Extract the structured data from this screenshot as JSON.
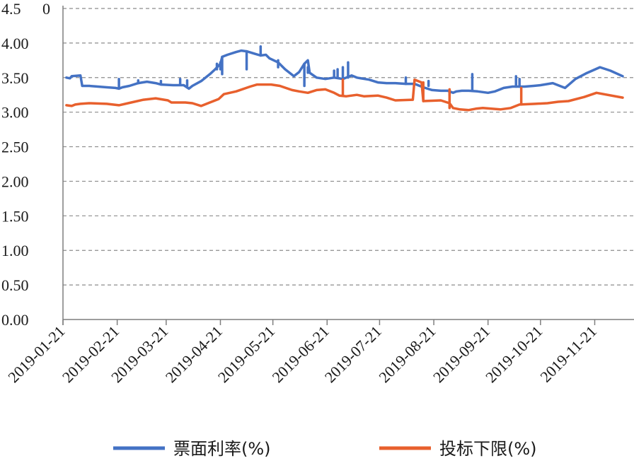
{
  "chart_data": {
    "type": "line",
    "xlabel": "",
    "ylabel": "",
    "y_tick_labels": [
      "0.00",
      "0.50",
      "1.00",
      "1.50",
      "2.00",
      "2.50",
      "3.00",
      "3.50",
      "4.00",
      "4.5"
    ],
    "y_tick_values": [
      0,
      0.5,
      1.0,
      1.5,
      2.0,
      2.5,
      3.0,
      3.5,
      4.0,
      4.5
    ],
    "top_left_label": "0",
    "ylim": [
      0,
      4.5
    ],
    "x_tick_labels": [
      "2019-01-21",
      "2019-02-21",
      "2019-03-21",
      "2019-04-21",
      "2019-05-21",
      "2019-06-21",
      "2019-07-21",
      "2019-08-21",
      "2019-09-21",
      "2019-10-21",
      "2019-11-21"
    ],
    "x_tick_dates": [
      "2019-01-21",
      "2019-02-21",
      "2019-03-21",
      "2019-04-21",
      "2019-05-21",
      "2019-06-21",
      "2019-07-21",
      "2019-08-21",
      "2019-09-21",
      "2019-10-21",
      "2019-11-21"
    ],
    "xlim": [
      "2019-01-21",
      "2019-12-07"
    ],
    "grid": "horizontal dashed",
    "legend_position": "bottom",
    "series": [
      {
        "name": "票面利率(%)",
        "color": "#4472C4",
        "points": [
          [
            "2019-01-23",
            3.5
          ],
          [
            "2019-01-25",
            3.49
          ],
          [
            "2019-01-26",
            3.52
          ],
          [
            "2019-01-31",
            3.53
          ],
          [
            "2019-02-01",
            3.38
          ],
          [
            "2019-02-05",
            3.38
          ],
          [
            "2019-02-10",
            3.37
          ],
          [
            "2019-02-15",
            3.36
          ],
          [
            "2019-02-20",
            3.35
          ],
          [
            "2019-02-22",
            3.34
          ],
          [
            "2019-02-24",
            3.36
          ],
          [
            "2019-02-28",
            3.38
          ],
          [
            "2019-03-05",
            3.42
          ],
          [
            "2019-03-10",
            3.44
          ],
          [
            "2019-03-15",
            3.42
          ],
          [
            "2019-03-18",
            3.4
          ],
          [
            "2019-03-25",
            3.39
          ],
          [
            "2019-03-31",
            3.39
          ],
          [
            "2019-04-03",
            3.34
          ],
          [
            "2019-04-05",
            3.38
          ],
          [
            "2019-04-10",
            3.45
          ],
          [
            "2019-04-15",
            3.55
          ],
          [
            "2019-04-18",
            3.62
          ],
          [
            "2019-04-21",
            3.7
          ],
          [
            "2019-04-22",
            3.8
          ],
          [
            "2019-04-25",
            3.83
          ],
          [
            "2019-04-30",
            3.87
          ],
          [
            "2019-05-03",
            3.89
          ],
          [
            "2019-05-06",
            3.88
          ],
          [
            "2019-05-10",
            3.85
          ],
          [
            "2019-05-14",
            3.82
          ],
          [
            "2019-05-17",
            3.83
          ],
          [
            "2019-05-19",
            3.78
          ],
          [
            "2019-05-24",
            3.72
          ],
          [
            "2019-05-28",
            3.62
          ],
          [
            "2019-06-02",
            3.52
          ],
          [
            "2019-06-05",
            3.58
          ],
          [
            "2019-06-08",
            3.7
          ],
          [
            "2019-06-10",
            3.75
          ],
          [
            "2019-06-11",
            3.57
          ],
          [
            "2019-06-15",
            3.5
          ],
          [
            "2019-06-20",
            3.48
          ],
          [
            "2019-06-25",
            3.5
          ],
          [
            "2019-06-30",
            3.48
          ],
          [
            "2019-07-05",
            3.53
          ],
          [
            "2019-07-08",
            3.5
          ],
          [
            "2019-07-15",
            3.47
          ],
          [
            "2019-07-20",
            3.43
          ],
          [
            "2019-07-25",
            3.42
          ],
          [
            "2019-07-30",
            3.42
          ],
          [
            "2019-08-05",
            3.41
          ],
          [
            "2019-08-10",
            3.41
          ],
          [
            "2019-08-15",
            3.36
          ],
          [
            "2019-08-20",
            3.32
          ],
          [
            "2019-08-25",
            3.31
          ],
          [
            "2019-08-29",
            3.31
          ],
          [
            "2019-09-01",
            3.28
          ],
          [
            "2019-09-03",
            3.3
          ],
          [
            "2019-09-06",
            3.31
          ],
          [
            "2019-09-10",
            3.31
          ],
          [
            "2019-09-15",
            3.3
          ],
          [
            "2019-09-21",
            3.28
          ],
          [
            "2019-09-25",
            3.3
          ],
          [
            "2019-09-30",
            3.35
          ],
          [
            "2019-10-05",
            3.37
          ],
          [
            "2019-10-12",
            3.37
          ],
          [
            "2019-10-17",
            3.38
          ],
          [
            "2019-10-21",
            3.39
          ],
          [
            "2019-10-28",
            3.42
          ],
          [
            "2019-11-04",
            3.35
          ],
          [
            "2019-11-10",
            3.48
          ],
          [
            "2019-11-16",
            3.56
          ],
          [
            "2019-11-24",
            3.65
          ],
          [
            "2019-11-30",
            3.6
          ],
          [
            "2019-12-07",
            3.52
          ]
        ],
        "spikes": [
          [
            "2019-02-22",
            3.34,
            3.48
          ],
          [
            "2019-03-05",
            3.42,
            3.46
          ],
          [
            "2019-03-18",
            3.4,
            3.45
          ],
          [
            "2019-03-29",
            3.4,
            3.48
          ],
          [
            "2019-04-02",
            3.36,
            3.46
          ],
          [
            "2019-04-19",
            3.62,
            3.7
          ],
          [
            "2019-04-21",
            3.62,
            3.72
          ],
          [
            "2019-04-22",
            3.55,
            3.8
          ],
          [
            "2019-05-06",
            3.62,
            3.88
          ],
          [
            "2019-05-14",
            3.82,
            3.95
          ],
          [
            "2019-05-24",
            3.65,
            3.75
          ],
          [
            "2019-06-08",
            3.38,
            3.7
          ],
          [
            "2019-06-10",
            3.57,
            3.65
          ],
          [
            "2019-06-25",
            3.52,
            3.6
          ],
          [
            "2019-06-27",
            3.5,
            3.62
          ],
          [
            "2019-06-30",
            3.48,
            3.65
          ],
          [
            "2019-07-03",
            3.5,
            3.72
          ],
          [
            "2019-08-05",
            3.41,
            3.5
          ],
          [
            "2019-08-18",
            3.38,
            3.45
          ],
          [
            "2019-08-30",
            3.25,
            3.32
          ],
          [
            "2019-09-12",
            3.31,
            3.55
          ],
          [
            "2019-10-07",
            3.37,
            3.52
          ],
          [
            "2019-10-09",
            3.37,
            3.48
          ]
        ]
      },
      {
        "name": "投标下限(%)",
        "color": "#E8602D",
        "points": [
          [
            "2019-01-23",
            3.1
          ],
          [
            "2019-01-26",
            3.09
          ],
          [
            "2019-01-28",
            3.11
          ],
          [
            "2019-01-31",
            3.12
          ],
          [
            "2019-02-05",
            3.13
          ],
          [
            "2019-02-15",
            3.12
          ],
          [
            "2019-02-22",
            3.1
          ],
          [
            "2019-03-01",
            3.14
          ],
          [
            "2019-03-08",
            3.18
          ],
          [
            "2019-03-15",
            3.2
          ],
          [
            "2019-03-22",
            3.17
          ],
          [
            "2019-03-24",
            3.14
          ],
          [
            "2019-04-01",
            3.14
          ],
          [
            "2019-04-05",
            3.13
          ],
          [
            "2019-04-10",
            3.09
          ],
          [
            "2019-04-15",
            3.14
          ],
          [
            "2019-04-20",
            3.19
          ],
          [
            "2019-04-23",
            3.26
          ],
          [
            "2019-04-30",
            3.3
          ],
          [
            "2019-05-08",
            3.37
          ],
          [
            "2019-05-12",
            3.4
          ],
          [
            "2019-05-20",
            3.4
          ],
          [
            "2019-05-25",
            3.38
          ],
          [
            "2019-06-01",
            3.32
          ],
          [
            "2019-06-05",
            3.3
          ],
          [
            "2019-06-10",
            3.28
          ],
          [
            "2019-06-15",
            3.32
          ],
          [
            "2019-06-20",
            3.33
          ],
          [
            "2019-06-25",
            3.28
          ],
          [
            "2019-06-28",
            3.24
          ],
          [
            "2019-07-02",
            3.23
          ],
          [
            "2019-07-08",
            3.25
          ],
          [
            "2019-07-12",
            3.23
          ],
          [
            "2019-07-20",
            3.24
          ],
          [
            "2019-07-25",
            3.21
          ],
          [
            "2019-07-30",
            3.17
          ],
          [
            "2019-08-09",
            3.18
          ],
          [
            "2019-08-10",
            3.47
          ],
          [
            "2019-08-14",
            3.43
          ],
          [
            "2019-08-15",
            3.16
          ],
          [
            "2019-08-25",
            3.17
          ],
          [
            "2019-08-30",
            3.13
          ],
          [
            "2019-09-01",
            3.06
          ],
          [
            "2019-09-05",
            3.04
          ],
          [
            "2019-09-10",
            3.03
          ],
          [
            "2019-09-14",
            3.05
          ],
          [
            "2019-09-18",
            3.06
          ],
          [
            "2019-09-23",
            3.05
          ],
          [
            "2019-09-28",
            3.04
          ],
          [
            "2019-10-04",
            3.06
          ],
          [
            "2019-10-09",
            3.11
          ],
          [
            "2019-10-18",
            3.12
          ],
          [
            "2019-10-25",
            3.13
          ],
          [
            "2019-10-31",
            3.15
          ],
          [
            "2019-11-06",
            3.16
          ],
          [
            "2019-11-15",
            3.22
          ],
          [
            "2019-11-22",
            3.28
          ],
          [
            "2019-12-07",
            3.21
          ]
        ],
        "spikes": [
          [
            "2019-06-30",
            3.24,
            3.47
          ],
          [
            "2019-08-15",
            3.16,
            3.43
          ],
          [
            "2019-08-30",
            3.06,
            3.33
          ],
          [
            "2019-10-10",
            3.11,
            3.35
          ]
        ]
      }
    ]
  }
}
